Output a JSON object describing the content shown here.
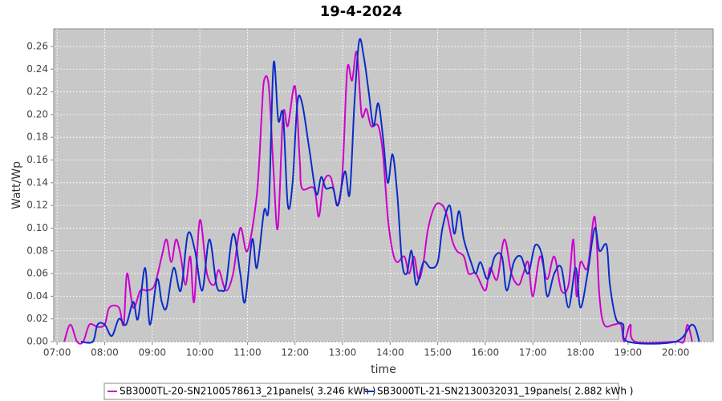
{
  "chart_data": {
    "type": "line",
    "title": "19-4-2024",
    "xlabel": "time",
    "ylabel": "Watt/Wp",
    "xlim": [
      6.93,
      20.79
    ],
    "ylim": [
      0,
      0.2755
    ],
    "grid": true,
    "legend": "bottom",
    "xticks": [
      {
        "value": 7,
        "label": "07:00"
      },
      {
        "value": 8,
        "label": "08:00"
      },
      {
        "value": 9,
        "label": "09:00"
      },
      {
        "value": 10,
        "label": "10:00"
      },
      {
        "value": 11,
        "label": "11:00"
      },
      {
        "value": 12,
        "label": "12:00"
      },
      {
        "value": 13,
        "label": "13:00"
      },
      {
        "value": 14,
        "label": "14:00"
      },
      {
        "value": 15,
        "label": "15:00"
      },
      {
        "value": 16,
        "label": "16:00"
      },
      {
        "value": 17,
        "label": "17:00"
      },
      {
        "value": 18,
        "label": "18:00"
      },
      {
        "value": 19,
        "label": "19:00"
      },
      {
        "value": 20,
        "label": "20:00"
      }
    ],
    "yticks": [
      {
        "value": 0,
        "label": "0.00"
      },
      {
        "value": 0.02,
        "label": "0.02"
      },
      {
        "value": 0.04,
        "label": "0.04"
      },
      {
        "value": 0.06,
        "label": "0.06"
      },
      {
        "value": 0.08,
        "label": "0.08"
      },
      {
        "value": 0.1,
        "label": "0.10"
      },
      {
        "value": 0.12,
        "label": "0.12"
      },
      {
        "value": 0.14,
        "label": "0.14"
      },
      {
        "value": 0.16,
        "label": "0.16"
      },
      {
        "value": 0.18,
        "label": "0.18"
      },
      {
        "value": 0.2,
        "label": "0.20"
      },
      {
        "value": 0.22,
        "label": "0.22"
      },
      {
        "value": 0.24,
        "label": "0.24"
      },
      {
        "value": 0.26,
        "label": "0.26"
      }
    ],
    "series": [
      {
        "name": "SB3000TL-20-SN2100578613_21panels( 3.246 kWh )",
        "color": "#cc00cc",
        "x": [
          7.15,
          7.28,
          7.42,
          7.55,
          7.68,
          7.85,
          8.0,
          8.1,
          8.3,
          8.4,
          8.47,
          8.6,
          8.75,
          8.9,
          9.05,
          9.2,
          9.3,
          9.4,
          9.5,
          9.6,
          9.7,
          9.8,
          9.88,
          10.0,
          10.15,
          10.3,
          10.4,
          10.55,
          10.7,
          10.85,
          11.0,
          11.2,
          11.3,
          11.35,
          11.45,
          11.55,
          11.64,
          11.75,
          11.85,
          12.0,
          12.1,
          12.15,
          12.4,
          12.5,
          12.6,
          12.75,
          12.9,
          13.0,
          13.1,
          13.2,
          13.3,
          13.4,
          13.5,
          13.6,
          13.75,
          13.85,
          13.95,
          14.05,
          14.15,
          14.3,
          14.4,
          14.5,
          14.6,
          14.7,
          14.8,
          14.95,
          15.1,
          15.2,
          15.3,
          15.4,
          15.55,
          15.65,
          15.8,
          16.0,
          16.1,
          16.25,
          16.4,
          16.55,
          16.7,
          16.8,
          16.9,
          17.0,
          17.15,
          17.3,
          17.45,
          17.6,
          17.75,
          17.85,
          17.92,
          18.0,
          18.15,
          18.3,
          18.4,
          18.5,
          18.7,
          18.85,
          18.92,
          19.05,
          19.15,
          20.0,
          20.17,
          20.25,
          20.35
        ],
        "values": [
          0,
          0.015,
          0,
          0,
          0.015,
          0.013,
          0.015,
          0.03,
          0.03,
          0.015,
          0.06,
          0.03,
          0.045,
          0.045,
          0.05,
          0.075,
          0.09,
          0.07,
          0.09,
          0.075,
          0.05,
          0.075,
          0.035,
          0.107,
          0.06,
          0.05,
          0.063,
          0.045,
          0.06,
          0.1,
          0.08,
          0.13,
          0.2,
          0.23,
          0.225,
          0.15,
          0.1,
          0.2,
          0.19,
          0.225,
          0.16,
          0.135,
          0.135,
          0.11,
          0.14,
          0.145,
          0.12,
          0.15,
          0.24,
          0.23,
          0.255,
          0.2,
          0.205,
          0.19,
          0.19,
          0.165,
          0.11,
          0.08,
          0.07,
          0.075,
          0.06,
          0.075,
          0.055,
          0.07,
          0.1,
          0.12,
          0.12,
          0.11,
          0.09,
          0.08,
          0.075,
          0.06,
          0.06,
          0.045,
          0.065,
          0.055,
          0.09,
          0.06,
          0.05,
          0.06,
          0.07,
          0.04,
          0.075,
          0.055,
          0.075,
          0.045,
          0.05,
          0.09,
          0.04,
          0.07,
          0.065,
          0.11,
          0.04,
          0.015,
          0.015,
          0.015,
          0,
          0.015,
          0,
          0,
          0,
          0.015,
          0
        ]
      },
      {
        "name": "SB3000TL-21-SN2130032031_19panels( 2.882 kWh )",
        "color": "#0a2cc8",
        "x": [
          7.5,
          7.75,
          7.85,
          8.0,
          8.15,
          8.3,
          8.45,
          8.6,
          8.7,
          8.85,
          8.95,
          9.1,
          9.2,
          9.3,
          9.45,
          9.6,
          9.75,
          9.9,
          10.05,
          10.2,
          10.35,
          10.45,
          10.55,
          10.7,
          10.85,
          10.95,
          11.1,
          11.2,
          11.35,
          11.45,
          11.55,
          11.65,
          11.75,
          11.85,
          11.95,
          12.05,
          12.15,
          12.3,
          12.45,
          12.55,
          12.65,
          12.8,
          12.9,
          13.05,
          13.15,
          13.25,
          13.35,
          13.45,
          13.55,
          13.65,
          13.75,
          13.85,
          13.95,
          14.05,
          14.15,
          14.25,
          14.35,
          14.45,
          14.55,
          14.7,
          14.85,
          15.0,
          15.1,
          15.25,
          15.35,
          15.45,
          15.55,
          15.7,
          15.8,
          15.9,
          16.05,
          16.2,
          16.35,
          16.45,
          16.6,
          16.75,
          16.9,
          17.05,
          17.2,
          17.3,
          17.45,
          17.6,
          17.75,
          17.9,
          18.0,
          18.15,
          18.3,
          18.4,
          18.55,
          18.62,
          18.75,
          18.9,
          19.0,
          20.0,
          20.35,
          20.5
        ],
        "values": [
          0,
          0,
          0.015,
          0.015,
          0.005,
          0.02,
          0.015,
          0.035,
          0.02,
          0.065,
          0.015,
          0.055,
          0.035,
          0.03,
          0.065,
          0.045,
          0.095,
          0.08,
          0.045,
          0.09,
          0.05,
          0.045,
          0.05,
          0.095,
          0.06,
          0.035,
          0.09,
          0.065,
          0.115,
          0.12,
          0.245,
          0.195,
          0.2,
          0.12,
          0.14,
          0.21,
          0.21,
          0.17,
          0.13,
          0.145,
          0.135,
          0.135,
          0.12,
          0.15,
          0.13,
          0.21,
          0.265,
          0.25,
          0.22,
          0.19,
          0.21,
          0.18,
          0.14,
          0.165,
          0.13,
          0.07,
          0.06,
          0.08,
          0.05,
          0.07,
          0.065,
          0.07,
          0.1,
          0.12,
          0.095,
          0.115,
          0.09,
          0.07,
          0.06,
          0.07,
          0.055,
          0.075,
          0.075,
          0.045,
          0.07,
          0.075,
          0.06,
          0.085,
          0.075,
          0.04,
          0.06,
          0.065,
          0.03,
          0.065,
          0.03,
          0.06,
          0.1,
          0.08,
          0.085,
          0.05,
          0.02,
          0.015,
          0,
          0,
          0.015,
          0
        ]
      }
    ]
  }
}
